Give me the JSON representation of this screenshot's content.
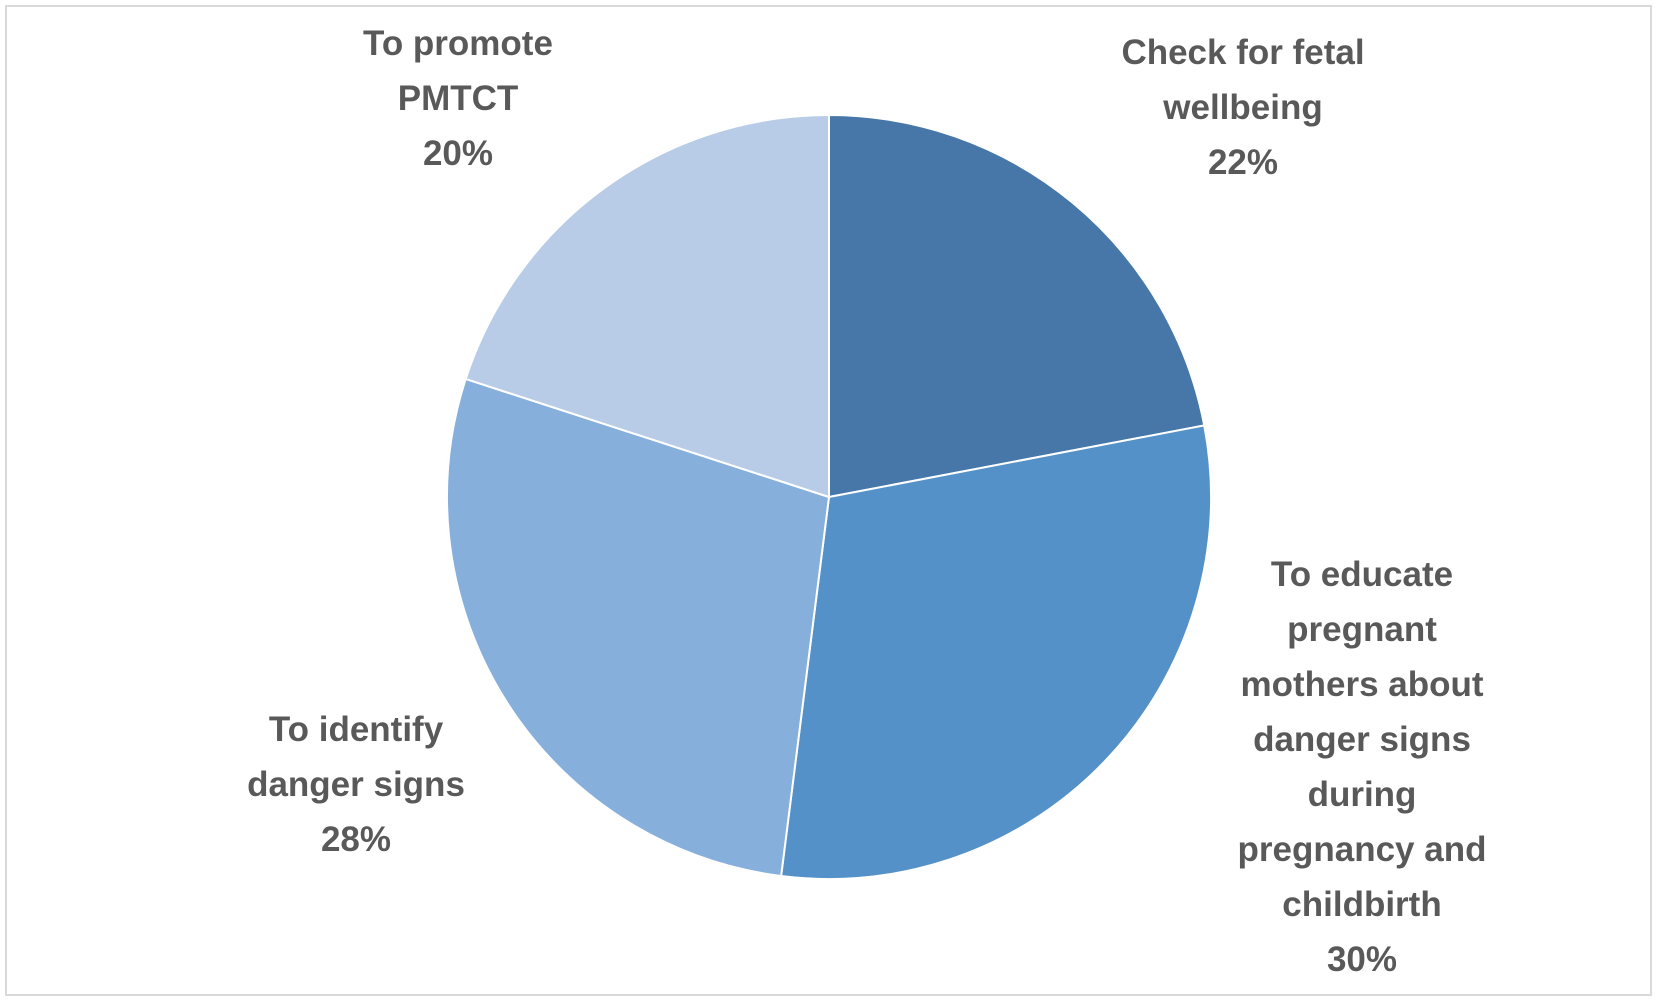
{
  "chart_data": {
    "type": "pie",
    "title": "",
    "slices": [
      {
        "label": "Check for fetal wellbeing",
        "value": 22,
        "value_label": "22%",
        "color": "#4677a8"
      },
      {
        "label": "To educate pregnant mothers about danger signs during pregnancy and childbirth",
        "value": 30,
        "value_label": "30%",
        "color": "#5491c8"
      },
      {
        "label": "To identify danger signs",
        "value": 28,
        "value_label": "28%",
        "color": "#86afdc"
      },
      {
        "label": "To promote PMTCT",
        "value": 20,
        "value_label": "20%",
        "color": "#b8cce7"
      }
    ],
    "start_angle": "12 o'clock",
    "direction": "clockwise",
    "legend": "none",
    "labels": "outside, category name and percentage",
    "label_lines": [
      [
        "Check for fetal",
        "wellbeing",
        "22%"
      ],
      [
        "To educate",
        "pregnant",
        "mothers about",
        "danger signs",
        "during",
        "pregnancy and",
        "childbirth",
        "30%"
      ],
      [
        "To identify",
        "danger signs",
        "28%"
      ],
      [
        "To promote",
        "PMTCT",
        "20%"
      ]
    ]
  }
}
